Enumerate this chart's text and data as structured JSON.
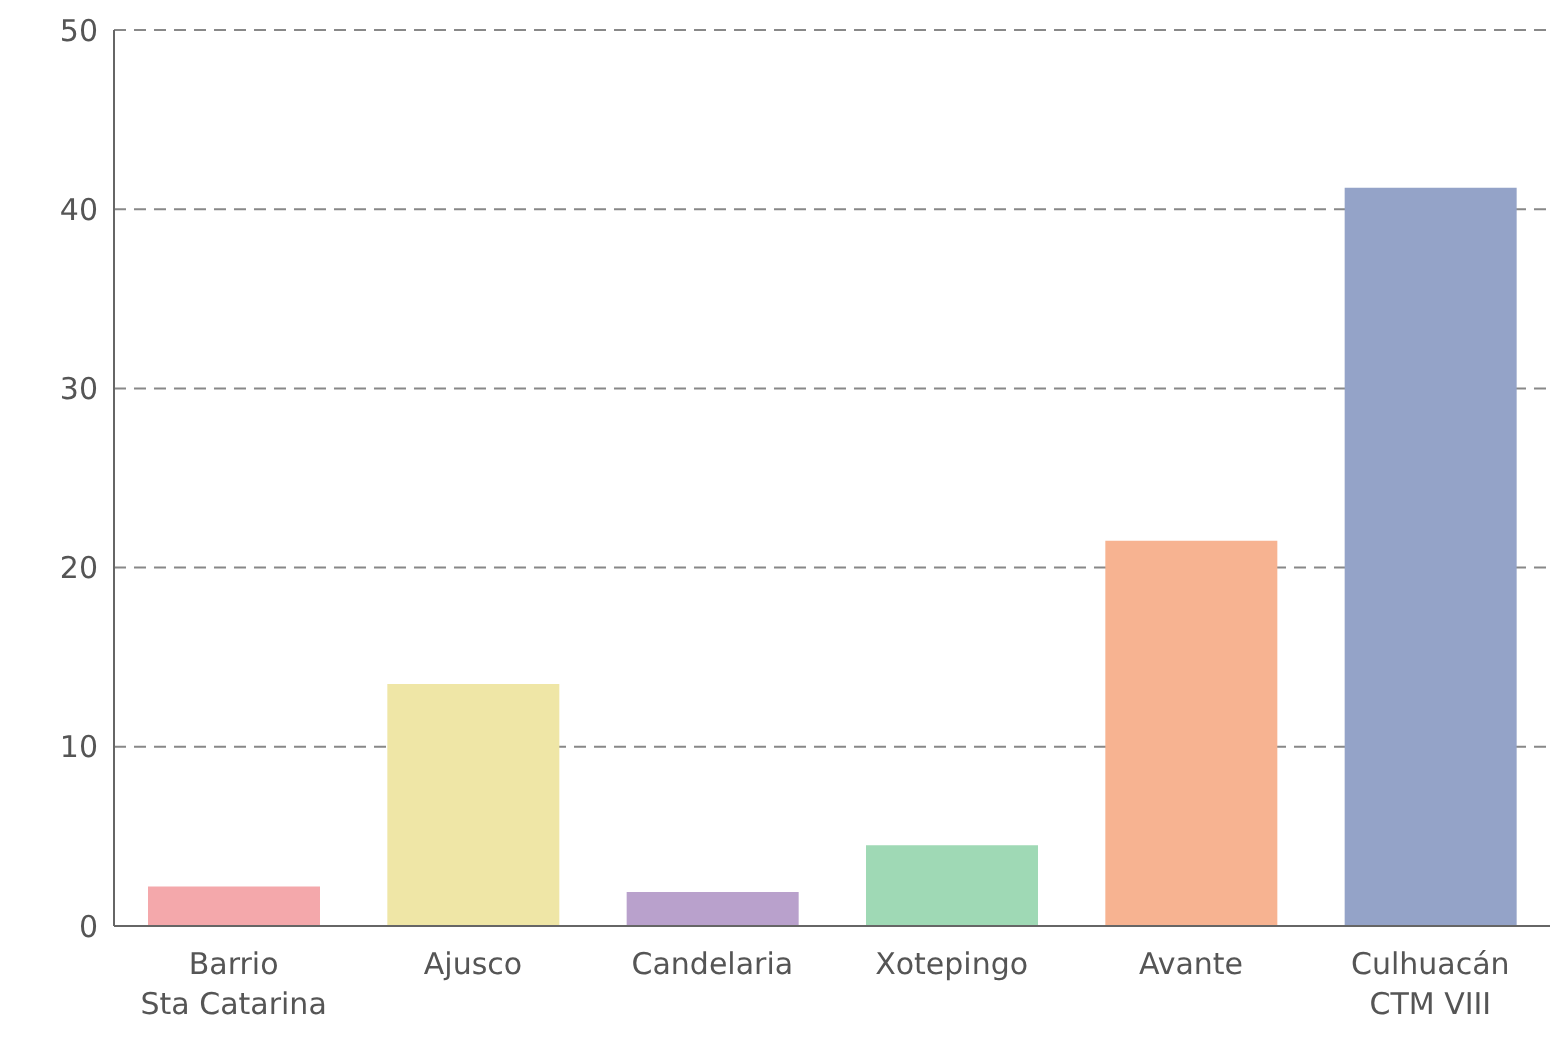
{
  "chart_data": {
    "type": "bar",
    "categories": [
      "Barrio\nSta Catarina",
      "Ajusco",
      "Candelaria",
      "Xotepingo",
      "Avante",
      "Culhuacán\nCTM VIII"
    ],
    "values": [
      2.2,
      13.5,
      1.9,
      4.5,
      21.5,
      41.2
    ],
    "colors": [
      "#f4a8ab",
      "#efe6a6",
      "#b9a1cc",
      "#9fd9b5",
      "#f7b391",
      "#94a3c8"
    ],
    "ylim": [
      0,
      50
    ],
    "yticks": [
      0,
      10,
      20,
      30,
      40,
      50
    ],
    "grid": "y"
  }
}
